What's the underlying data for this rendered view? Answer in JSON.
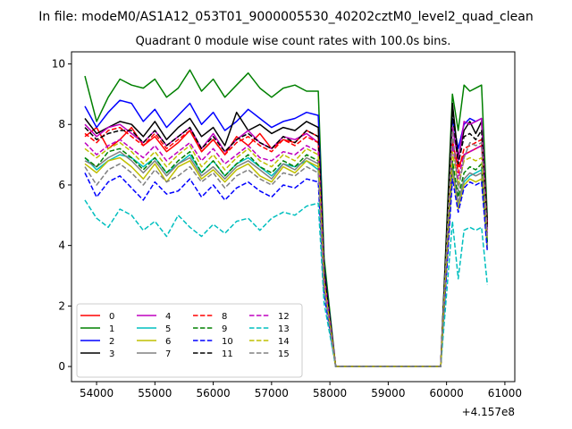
{
  "chart_data": {
    "type": "line",
    "suptitle": "In file: modeM0/AS1A12_053T01_9000005530_40202cztM0_level2_quad_clean",
    "title": "Quadrant 0 module wise count rates with 100.0s bins.",
    "xlabel": "",
    "ylabel": "",
    "x_offset_label": "+4.157e8",
    "xlim": [
      53570,
      61170
    ],
    "ylim": [
      -0.5,
      10.4
    ],
    "grid": false,
    "legend_position": "lower-left",
    "x_ticks": [
      54000,
      55000,
      56000,
      57000,
      58000,
      59000,
      60000,
      61000
    ],
    "y_ticks": [
      0,
      2,
      4,
      6,
      8,
      10
    ],
    "x": [
      53800,
      54000,
      54200,
      54400,
      54600,
      54800,
      55000,
      55200,
      55400,
      55600,
      55800,
      56000,
      56200,
      56400,
      56600,
      56800,
      57000,
      57200,
      57400,
      57600,
      57800,
      57900,
      58100,
      58400,
      58800,
      59200,
      59600,
      59900,
      60100,
      60200,
      60300,
      60400,
      60500,
      60600,
      60700
    ],
    "series": [
      {
        "name": "0",
        "color": "#ff0000",
        "dash": "solid",
        "values": [
          7.6,
          7.9,
          7.2,
          7.5,
          7.9,
          7.3,
          7.6,
          7.1,
          7.4,
          7.8,
          7.1,
          7.5,
          7.0,
          7.6,
          7.3,
          7.7,
          7.2,
          7.5,
          7.4,
          7.8,
          7.6,
          3.1,
          0,
          0,
          0,
          0,
          0,
          0,
          7.4,
          6.6,
          7.0,
          7.1,
          7.2,
          7.3,
          4.8
        ]
      },
      {
        "name": "1",
        "color": "#008000",
        "dash": "solid",
        "values": [
          9.6,
          8.1,
          8.9,
          9.5,
          9.3,
          9.2,
          9.5,
          8.9,
          9.2,
          9.8,
          9.1,
          9.5,
          8.9,
          9.3,
          9.7,
          9.2,
          8.9,
          9.2,
          9.3,
          9.1,
          9.1,
          3.6,
          0,
          0,
          0,
          0,
          0,
          0,
          9.0,
          7.8,
          9.3,
          9.1,
          9.2,
          9.3,
          4.9
        ]
      },
      {
        "name": "2",
        "color": "#0000ff",
        "dash": "solid",
        "values": [
          8.6,
          7.9,
          8.4,
          8.8,
          8.7,
          8.1,
          8.5,
          7.9,
          8.3,
          8.7,
          8.0,
          8.4,
          7.8,
          8.1,
          8.5,
          8.2,
          7.9,
          8.1,
          8.2,
          8.4,
          8.3,
          3.3,
          0,
          0,
          0,
          0,
          0,
          0,
          8.2,
          7.2,
          8.0,
          8.2,
          8.1,
          8.2,
          4.6
        ]
      },
      {
        "name": "3",
        "color": "#000000",
        "dash": "solid",
        "values": [
          8.2,
          7.7,
          7.9,
          8.1,
          8.0,
          7.6,
          8.1,
          7.5,
          7.9,
          8.2,
          7.6,
          7.9,
          7.3,
          8.4,
          7.8,
          8.0,
          7.7,
          7.9,
          7.8,
          8.1,
          7.9,
          3.2,
          0,
          0,
          0,
          0,
          0,
          0,
          8.7,
          6.9,
          7.8,
          8.1,
          7.7,
          8.1,
          4.7
        ]
      },
      {
        "name": "4",
        "color": "#bf00bf",
        "dash": "solid",
        "values": [
          8.0,
          7.6,
          7.9,
          8.0,
          7.7,
          7.4,
          7.8,
          7.3,
          7.6,
          7.9,
          7.2,
          7.7,
          7.1,
          7.5,
          7.8,
          7.4,
          7.2,
          7.6,
          7.5,
          7.7,
          7.4,
          3.0,
          0,
          0,
          0,
          0,
          0,
          0,
          7.9,
          6.8,
          8.1,
          8.0,
          8.1,
          8.2,
          4.5
        ]
      },
      {
        "name": "5",
        "color": "#00bfbf",
        "dash": "solid",
        "values": [
          6.9,
          6.5,
          6.8,
          7.0,
          6.9,
          6.6,
          6.9,
          6.4,
          6.7,
          7.0,
          6.4,
          6.8,
          6.3,
          6.7,
          6.9,
          6.6,
          6.3,
          6.7,
          6.6,
          6.8,
          6.5,
          2.7,
          0,
          0,
          0,
          0,
          0,
          0,
          6.7,
          5.3,
          6.1,
          6.3,
          6.4,
          6.5,
          4.1
        ]
      },
      {
        "name": "6",
        "color": "#bfbf00",
        "dash": "solid",
        "values": [
          6.7,
          6.4,
          6.8,
          6.9,
          6.6,
          6.2,
          6.7,
          6.1,
          6.6,
          6.8,
          6.2,
          6.5,
          6.1,
          6.5,
          6.7,
          6.3,
          6.1,
          6.6,
          6.4,
          6.8,
          6.6,
          2.6,
          0,
          0,
          0,
          0,
          0,
          0,
          6.5,
          5.2,
          6.0,
          6.2,
          6.1,
          6.2,
          3.9
        ]
      },
      {
        "name": "7",
        "color": "#808080",
        "dash": "solid",
        "values": [
          6.8,
          6.6,
          6.9,
          7.1,
          6.8,
          6.4,
          6.8,
          6.3,
          6.7,
          6.9,
          6.3,
          6.6,
          6.2,
          6.6,
          6.8,
          6.5,
          6.2,
          6.7,
          6.5,
          6.9,
          6.7,
          2.6,
          0,
          0,
          0,
          0,
          0,
          0,
          6.6,
          5.4,
          6.2,
          6.4,
          6.3,
          6.4,
          4.0
        ]
      },
      {
        "name": "8",
        "color": "#ff0000",
        "dash": "dashed",
        "values": [
          7.7,
          7.4,
          7.8,
          7.9,
          7.6,
          7.3,
          7.7,
          7.2,
          7.5,
          7.8,
          7.1,
          7.5,
          7.0,
          7.4,
          7.6,
          7.3,
          7.1,
          7.5,
          7.3,
          7.6,
          7.4,
          3.0,
          0,
          0,
          0,
          0,
          0,
          0,
          7.5,
          6.4,
          7.2,
          7.3,
          7.4,
          7.5,
          4.6
        ]
      },
      {
        "name": "9",
        "color": "#008000",
        "dash": "dashed",
        "values": [
          6.9,
          6.6,
          7.1,
          7.2,
          6.9,
          6.5,
          6.9,
          6.4,
          6.8,
          7.1,
          6.4,
          6.8,
          6.3,
          6.7,
          7.0,
          6.6,
          6.4,
          6.8,
          6.6,
          7.0,
          6.8,
          2.7,
          0,
          0,
          0,
          0,
          0,
          0,
          6.8,
          5.6,
          6.4,
          6.6,
          6.5,
          6.7,
          4.1
        ]
      },
      {
        "name": "10",
        "color": "#0000ff",
        "dash": "dashed",
        "values": [
          6.4,
          5.6,
          6.1,
          6.3,
          5.9,
          5.5,
          6.1,
          5.7,
          5.8,
          6.2,
          5.6,
          6.0,
          5.5,
          5.9,
          6.1,
          5.8,
          5.6,
          6.0,
          5.9,
          6.2,
          6.1,
          2.4,
          0,
          0,
          0,
          0,
          0,
          0,
          6.2,
          5.1,
          5.9,
          6.1,
          6.0,
          6.1,
          3.8
        ]
      },
      {
        "name": "11",
        "color": "#000000",
        "dash": "dashed",
        "values": [
          7.9,
          7.5,
          7.7,
          7.8,
          7.8,
          7.4,
          7.8,
          7.3,
          7.6,
          7.9,
          7.2,
          7.6,
          7.1,
          7.5,
          7.7,
          7.4,
          7.2,
          7.6,
          7.4,
          7.8,
          7.6,
          3.1,
          0,
          0,
          0,
          0,
          0,
          0,
          8.4,
          6.7,
          7.6,
          7.7,
          7.5,
          7.8,
          4.6
        ]
      },
      {
        "name": "12",
        "color": "#bf00bf",
        "dash": "dashed",
        "values": [
          7.4,
          7.0,
          7.3,
          7.5,
          7.2,
          6.9,
          7.3,
          6.8,
          7.1,
          7.4,
          6.8,
          7.2,
          6.7,
          7.0,
          7.3,
          6.9,
          6.8,
          7.1,
          7.0,
          7.3,
          7.1,
          2.9,
          0,
          0,
          0,
          0,
          0,
          0,
          7.3,
          6.2,
          7.0,
          7.1,
          7.2,
          7.3,
          4.4
        ]
      },
      {
        "name": "13",
        "color": "#00bfbf",
        "dash": "dashed",
        "values": [
          5.5,
          4.9,
          4.6,
          5.2,
          5.0,
          4.5,
          4.8,
          4.3,
          5.0,
          4.6,
          4.3,
          4.7,
          4.4,
          4.8,
          4.9,
          4.5,
          4.9,
          5.1,
          5.0,
          5.3,
          5.4,
          2.1,
          0,
          0,
          0,
          0,
          0,
          0,
          4.8,
          2.9,
          4.5,
          4.6,
          4.5,
          4.6,
          2.7
        ]
      },
      {
        "name": "14",
        "color": "#bfbf00",
        "dash": "dashed",
        "values": [
          7.2,
          6.9,
          7.2,
          7.4,
          7.1,
          6.7,
          7.1,
          6.6,
          7.0,
          7.3,
          6.6,
          7.0,
          6.5,
          6.9,
          7.2,
          6.8,
          6.6,
          7.0,
          6.8,
          7.2,
          7.0,
          2.8,
          0,
          0,
          0,
          0,
          0,
          0,
          7.1,
          6.0,
          6.8,
          6.9,
          6.8,
          6.9,
          4.2
        ]
      },
      {
        "name": "15",
        "color": "#808080",
        "dash": "dashed",
        "values": [
          6.6,
          6.0,
          6.5,
          6.7,
          6.4,
          6.0,
          6.5,
          6.1,
          6.3,
          6.6,
          6.1,
          6.4,
          5.9,
          6.3,
          6.5,
          6.2,
          6.0,
          6.4,
          6.3,
          6.6,
          6.4,
          2.6,
          0,
          0,
          0,
          0,
          0,
          0,
          7.8,
          5.8,
          6.9,
          7.4,
          7.3,
          7.4,
          4.3
        ]
      }
    ]
  }
}
